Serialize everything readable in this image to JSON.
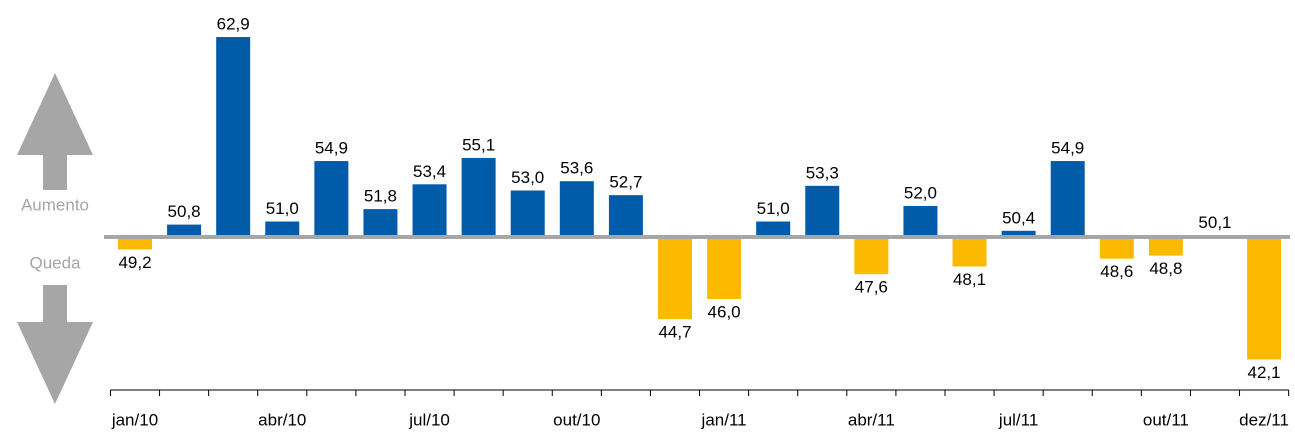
{
  "chart_data": {
    "type": "bar",
    "categories": [
      "jan/10",
      null,
      null,
      "abr/10",
      null,
      null,
      "jul/10",
      null,
      null,
      "out/10",
      null,
      null,
      "jan/11",
      null,
      null,
      "abr/11",
      null,
      null,
      "jul/11",
      null,
      null,
      "out/11",
      null,
      "dez/11"
    ],
    "values": [
      49.2,
      50.8,
      62.9,
      51.0,
      54.9,
      51.8,
      53.4,
      55.1,
      53.0,
      53.6,
      52.7,
      44.7,
      46.0,
      51.0,
      53.3,
      47.6,
      52.0,
      48.1,
      50.4,
      54.9,
      48.6,
      48.8,
      50.1,
      42.1
    ],
    "value_labels": [
      "49,2",
      "50,8",
      "62,9",
      "51,0",
      "54,9",
      "51,8",
      "53,4",
      "55,1",
      "53,0",
      "53,6",
      "52,7",
      "44,7",
      "46,0",
      "51,0",
      "53,3",
      "47,6",
      "52,0",
      "48,1",
      "50,4",
      "54,9",
      "48,6",
      "48,8",
      "50,1",
      "42,1"
    ],
    "baseline": 50,
    "ylim": [
      40,
      64
    ],
    "color_above": "#005ca9",
    "color_below": "#fbb900",
    "annotations": [
      "Aumento",
      "Queda"
    ]
  }
}
